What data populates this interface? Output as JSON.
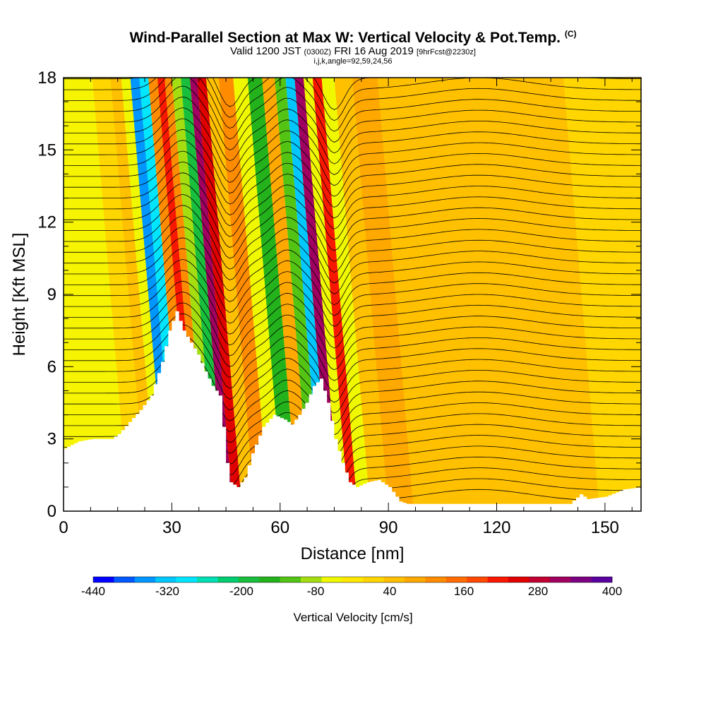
{
  "header": {
    "title": "Wind-Parallel Section at Max W: Vertical Velocity & Pot.Temp.",
    "copyright": "(C)",
    "valid_prefix": "Valid 1200 JST",
    "valid_utc": "(0300Z)",
    "valid_date": "FRI 16 Aug 2019",
    "forecast": "[9hrFcst@2230z]",
    "indices": "i,j,k,angle=92,59,24,56"
  },
  "chart_data": {
    "type": "heatmap",
    "title": "Wind-Parallel Section at Max W: Vertical Velocity & Pot.Temp.",
    "xlabel": "Distance [nm]",
    "ylabel": "Height [Kft MSL]",
    "xlim": [
      0,
      160
    ],
    "ylim": [
      0,
      18
    ],
    "x_ticks": [
      0,
      30,
      60,
      90,
      120,
      150
    ],
    "y_ticks": [
      0,
      3,
      6,
      9,
      12,
      15,
      18
    ],
    "colorbar": {
      "label": "Vertical Velocity [cm/s]",
      "tick_labels": [
        "-440",
        "-320",
        "-200",
        "-80",
        "40",
        "160",
        "280",
        "400"
      ],
      "tick_values": [
        -440,
        -320,
        -200,
        -80,
        40,
        160,
        280,
        400
      ],
      "colors": [
        "#0000ff",
        "#0058ff",
        "#0096ff",
        "#00c8ff",
        "#00e6ff",
        "#00e0b4",
        "#00cc70",
        "#18be3c",
        "#24b21c",
        "#54c414",
        "#a4de10",
        "#f0f800",
        "#ffe800",
        "#ffd600",
        "#ffc000",
        "#ffa800",
        "#ff8c00",
        "#ff6c00",
        "#ff4800",
        "#f81800",
        "#e00000",
        "#c00030",
        "#a00060",
        "#7c0082",
        "#5a00a0"
      ]
    },
    "vertical_velocity_bands": [
      {
        "x": 20,
        "w_cms": 20
      },
      {
        "x": 24,
        "w_cms": 60
      },
      {
        "x": 26,
        "w_cms": -60
      },
      {
        "x": 29,
        "w_cms": -340
      },
      {
        "x": 31,
        "w_cms": -280
      },
      {
        "x": 34,
        "w_cms": 120
      },
      {
        "x": 36,
        "w_cms": 200
      },
      {
        "x": 38,
        "w_cms": 100
      },
      {
        "x": 40,
        "w_cms": -100
      },
      {
        "x": 43,
        "w_cms": -180
      },
      {
        "x": 45,
        "w_cms": 320
      },
      {
        "x": 47,
        "w_cms": 260
      },
      {
        "x": 50,
        "w_cms": 60
      },
      {
        "x": 54,
        "w_cms": 120
      },
      {
        "x": 58,
        "w_cms": -60
      },
      {
        "x": 62,
        "w_cms": -160
      },
      {
        "x": 66,
        "w_cms": 80
      },
      {
        "x": 69,
        "w_cms": -120
      },
      {
        "x": 72,
        "w_cms": -320
      },
      {
        "x": 74,
        "w_cms": 320
      },
      {
        "x": 77,
        "w_cms": -60
      },
      {
        "x": 79,
        "w_cms": 220
      },
      {
        "x": 82,
        "w_cms": -40
      },
      {
        "x": 86,
        "w_cms": 60
      },
      {
        "x": 92,
        "w_cms": 80
      },
      {
        "x": 100,
        "w_cms": 40
      },
      {
        "x": 108,
        "w_cms": 60
      },
      {
        "x": 120,
        "w_cms": 40
      },
      {
        "x": 140,
        "w_cms": 60
      },
      {
        "x": 155,
        "w_cms": 30
      }
    ],
    "terrain_profile_kft": [
      [
        0,
        2.6
      ],
      [
        4,
        2.9
      ],
      [
        8,
        3.0
      ],
      [
        13,
        3.0
      ],
      [
        15,
        3.2
      ],
      [
        18,
        3.7
      ],
      [
        21,
        4.2
      ],
      [
        24,
        4.8
      ],
      [
        27,
        6.2
      ],
      [
        29,
        7.5
      ],
      [
        31,
        8.3
      ],
      [
        33,
        7.5
      ],
      [
        35,
        7.0
      ],
      [
        37,
        6.5
      ],
      [
        39,
        5.8
      ],
      [
        41,
        5.2
      ],
      [
        43,
        4.8
      ],
      [
        44,
        3.5
      ],
      [
        45,
        2.0
      ],
      [
        46,
        1.2
      ],
      [
        48,
        1.0
      ],
      [
        50,
        1.4
      ],
      [
        52,
        2.4
      ],
      [
        55,
        3.5
      ],
      [
        58,
        4.0
      ],
      [
        61,
        3.8
      ],
      [
        63,
        3.6
      ],
      [
        65,
        4.0
      ],
      [
        67,
        4.5
      ],
      [
        69,
        5.2
      ],
      [
        71,
        5.5
      ],
      [
        73,
        4.5
      ],
      [
        75,
        3.0
      ],
      [
        77,
        2.0
      ],
      [
        79,
        1.2
      ],
      [
        81,
        1.0
      ],
      [
        84,
        1.2
      ],
      [
        87,
        1.3
      ],
      [
        90,
        1.0
      ],
      [
        93,
        0.4
      ],
      [
        95,
        0.3
      ],
      [
        105,
        0.3
      ],
      [
        130,
        0.3
      ],
      [
        140,
        0.3
      ],
      [
        143,
        0.7
      ],
      [
        145,
        0.5
      ],
      [
        150,
        0.6
      ],
      [
        155,
        0.9
      ],
      [
        160,
        1.0
      ]
    ]
  }
}
